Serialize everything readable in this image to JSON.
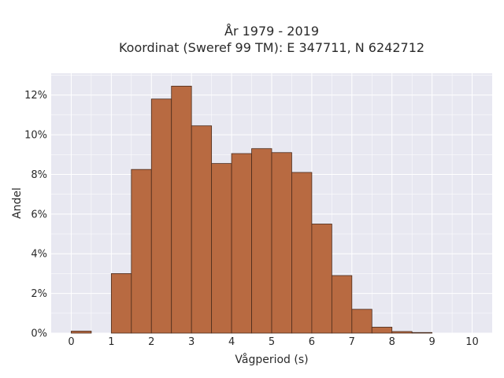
{
  "chart_data": {
    "type": "bar",
    "title_line1": "År 1979 - 2019",
    "title_line2": "Koordinat (Sweref 99 TM): E 347711, N 6242712",
    "xlabel": "Vågperiod (s)",
    "ylabel": "Andel",
    "bins": [
      {
        "start": 0.0,
        "end": 0.5,
        "value": 0.1
      },
      {
        "start": 0.5,
        "end": 1.0,
        "value": 0.0
      },
      {
        "start": 1.0,
        "end": 1.5,
        "value": 3.0
      },
      {
        "start": 1.5,
        "end": 2.0,
        "value": 8.25
      },
      {
        "start": 2.0,
        "end": 2.5,
        "value": 11.8
      },
      {
        "start": 2.5,
        "end": 3.0,
        "value": 12.45
      },
      {
        "start": 3.0,
        "end": 3.5,
        "value": 10.45
      },
      {
        "start": 3.5,
        "end": 4.0,
        "value": 8.55
      },
      {
        "start": 4.0,
        "end": 4.5,
        "value": 9.05
      },
      {
        "start": 4.5,
        "end": 5.0,
        "value": 9.3
      },
      {
        "start": 5.0,
        "end": 5.5,
        "value": 9.1
      },
      {
        "start": 5.5,
        "end": 6.0,
        "value": 8.1
      },
      {
        "start": 6.0,
        "end": 6.5,
        "value": 5.5
      },
      {
        "start": 6.5,
        "end": 7.0,
        "value": 2.9
      },
      {
        "start": 7.0,
        "end": 7.5,
        "value": 1.2
      },
      {
        "start": 7.5,
        "end": 8.0,
        "value": 0.3
      },
      {
        "start": 8.0,
        "end": 8.5,
        "value": 0.08
      },
      {
        "start": 8.5,
        "end": 9.0,
        "value": 0.03
      }
    ],
    "x_ticks": [
      0,
      1,
      2,
      3,
      4,
      5,
      6,
      7,
      8,
      9,
      10
    ],
    "y_ticks": [
      {
        "value": 0,
        "label": "0%"
      },
      {
        "value": 2,
        "label": "2%"
      },
      {
        "value": 4,
        "label": "4%"
      },
      {
        "value": 6,
        "label": "6%"
      },
      {
        "value": 8,
        "label": "8%"
      },
      {
        "value": 10,
        "label": "10%"
      },
      {
        "value": 12,
        "label": "12%"
      }
    ],
    "xlim": [
      -0.5,
      10.5
    ],
    "ylim": [
      0,
      13.1
    ],
    "grid": true,
    "colors": {
      "bar_fill": "#b86a41",
      "bar_edge": "#4a2b1c",
      "plot_background": "#e8e8f1",
      "grid": "#ffffff"
    }
  }
}
